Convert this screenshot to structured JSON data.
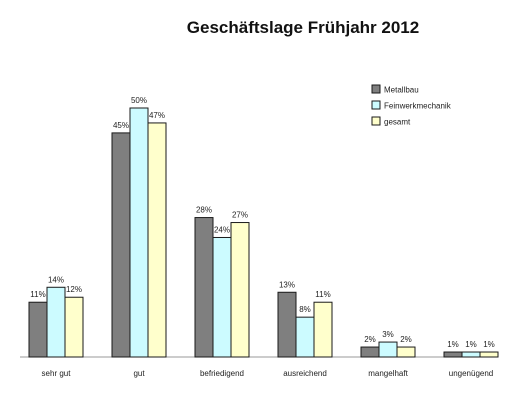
{
  "chart_data": {
    "type": "bar",
    "title": "Geschäftslage Frühjahr 2012",
    "xlabel": "",
    "ylabel": "",
    "ylim": [
      0,
      50
    ],
    "grid": false,
    "legend_position": "top-right",
    "categories": [
      "sehr gut",
      "gut",
      "befriedigend",
      "ausreichend",
      "mangelhaft",
      "ungenügend"
    ],
    "series": [
      {
        "name": "Metallbau",
        "color": "#7f7f7f",
        "values": [
          11,
          45,
          28,
          13,
          2,
          1
        ],
        "labels": [
          "11%",
          "45%",
          "28%",
          "13%",
          "2%",
          "1%"
        ]
      },
      {
        "name": "Feinwerkmechanik",
        "color": "#ccfbff",
        "values": [
          14,
          50,
          24,
          8,
          3,
          1
        ],
        "labels": [
          "14%",
          "50%",
          "24%",
          "8%",
          "3%",
          "1%"
        ]
      },
      {
        "name": "gesamt",
        "color": "#ffffcc",
        "values": [
          12,
          47,
          27,
          11,
          2,
          1
        ],
        "labels": [
          "12%",
          "47%",
          "27%",
          "11%",
          "2%",
          "1%"
        ]
      }
    ]
  }
}
